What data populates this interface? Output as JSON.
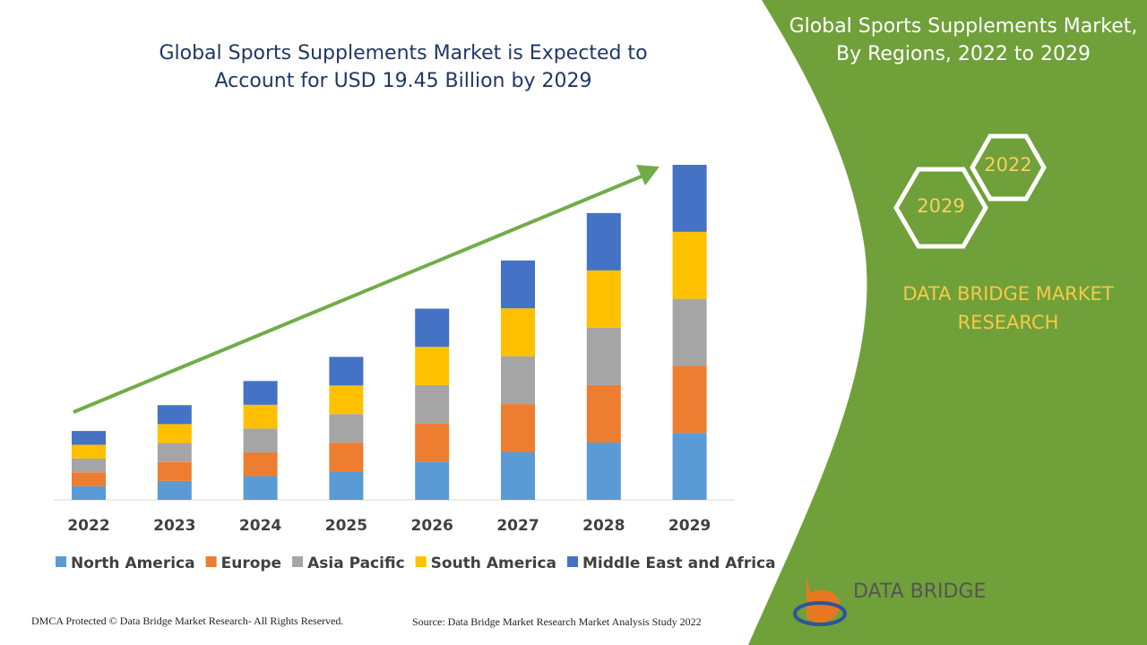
{
  "chart_data": {
    "type": "stacked-bar",
    "title": "Global Sports Supplements Market is Expected to Account for USD 19.45 Billion by 2029",
    "categories": [
      "2022",
      "2023",
      "2024",
      "2025",
      "2026",
      "2027",
      "2028",
      "2029"
    ],
    "series": [
      {
        "name": "North America",
        "color": "#5b9bd5",
        "values": [
          0.8,
          1.1,
          1.38,
          1.66,
          2.22,
          2.78,
          3.33,
          3.89
        ]
      },
      {
        "name": "Europe",
        "color": "#ed7d31",
        "values": [
          0.8,
          1.1,
          1.38,
          1.66,
          2.22,
          2.78,
          3.33,
          3.89
        ]
      },
      {
        "name": "Asia Pacific",
        "color": "#a5a5a5",
        "values": [
          0.8,
          1.1,
          1.38,
          1.66,
          2.22,
          2.78,
          3.33,
          3.89
        ]
      },
      {
        "name": "South America",
        "color": "#ffc000",
        "values": [
          0.8,
          1.1,
          1.38,
          1.66,
          2.22,
          2.78,
          3.33,
          3.89
        ]
      },
      {
        "name": "Middle East and Africa",
        "color": "#4472c4",
        "values": [
          0.8,
          1.1,
          1.38,
          1.66,
          2.22,
          2.78,
          3.33,
          3.89
        ]
      }
    ]
  },
  "panel": {
    "title": "Global Sports Supplements Market, By Regions, 2022 to 2029",
    "hex_start": "2022",
    "hex_end": "2029",
    "brand": "DATA BRIDGE MARKET RESEARCH",
    "logo": "DATA BRIDGE"
  },
  "footer": {
    "copyright": "DMCA Protected © Data Bridge Market Research- All Rights Reserved.",
    "source": "Source: Data Bridge Market Research Market Analysis Study 2022"
  }
}
